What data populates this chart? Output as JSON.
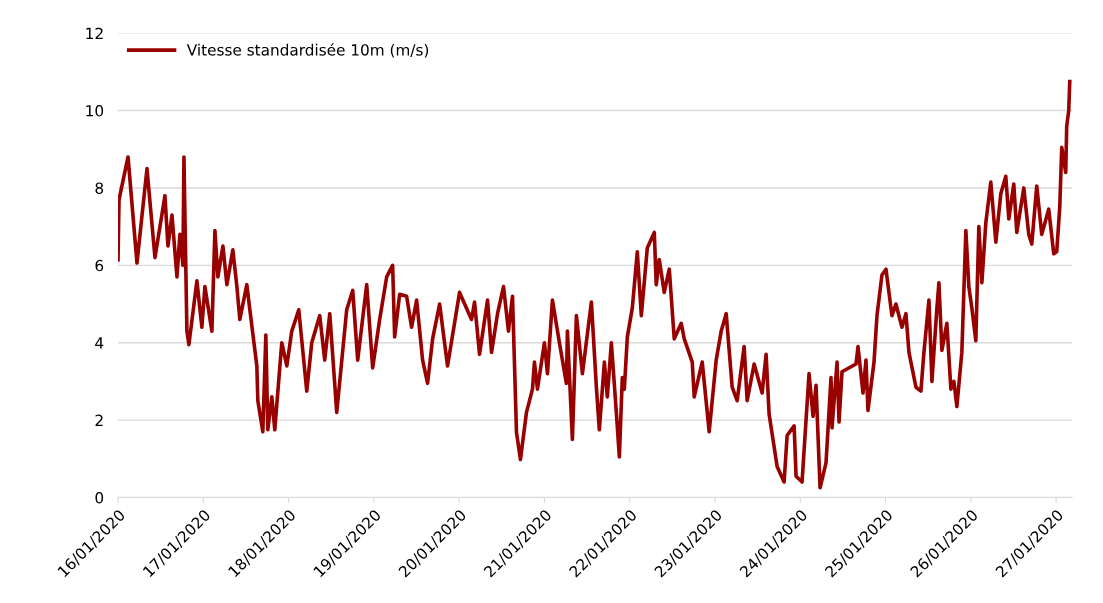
{
  "chart_data": {
    "type": "line",
    "legend": "top left",
    "grid": "y",
    "line_style": "solid",
    "ylim": [
      0,
      12
    ],
    "yticks": [
      0,
      2,
      4,
      6,
      8,
      10,
      12
    ],
    "xlim": [
      "2020-01-16T00:00",
      "2020-01-27T04:30"
    ],
    "xticks": [
      {
        "value": "2020-01-16",
        "label": "16/01/2020"
      },
      {
        "value": "2020-01-17",
        "label": "17/01/2020"
      },
      {
        "value": "2020-01-18",
        "label": "18/01/2020"
      },
      {
        "value": "2020-01-19",
        "label": "19/01/2020"
      },
      {
        "value": "2020-01-20",
        "label": "20/01/2020"
      },
      {
        "value": "2020-01-21",
        "label": "21/01/2020"
      },
      {
        "value": "2020-01-22",
        "label": "22/01/2020"
      },
      {
        "value": "2020-01-23",
        "label": "23/01/2020"
      },
      {
        "value": "2020-01-24",
        "label": "24/01/2020"
      },
      {
        "value": "2020-01-25",
        "label": "25/01/2020"
      },
      {
        "value": "2020-01-26",
        "label": "26/01/2020"
      },
      {
        "value": "2020-01-27",
        "label": "27/01/2020"
      }
    ],
    "x": [
      "2020-01-16T00:00",
      "2020-01-16T00:17",
      "2020-01-16T02:49",
      "2020-01-16T05:20",
      "2020-01-16T08:09",
      "2020-01-16T10:24",
      "2020-01-16T13:12",
      "2020-01-16T14:03",
      "2020-01-16T15:11",
      "2020-01-16T16:35",
      "2020-01-16T17:25",
      "2020-01-16T18:16",
      "2020-01-16T18:33",
      "2020-01-16T19:23",
      "2020-01-16T19:57",
      "2020-01-16T22:12",
      "2020-01-16T23:36",
      "2020-01-17T00:27",
      "2020-01-17T02:25",
      "2020-01-17T03:16",
      "2020-01-17T04:06",
      "2020-01-17T05:31",
      "2020-01-17T06:38",
      "2020-01-17T08:19",
      "2020-01-17T09:27",
      "2020-01-17T10:17",
      "2020-01-17T12:15",
      "2020-01-17T13:06",
      "2020-01-17T15:04",
      "2020-01-17T15:21",
      "2020-01-17T16:45",
      "2020-01-17T17:36",
      "2020-01-17T18:09",
      "2020-01-17T19:17",
      "2020-01-17T20:07",
      "2020-01-17T22:05",
      "2020-01-17T23:30",
      "2020-01-18T00:54",
      "2020-01-18T02:52",
      "2020-01-18T05:07",
      "2020-01-18T06:31",
      "2020-01-18T08:46",
      "2020-01-18T10:10",
      "2020-01-18T11:35",
      "2020-01-18T13:33",
      "2020-01-18T16:21",
      "2020-01-18T18:03",
      "2020-01-18T19:27",
      "2020-01-18T21:59",
      "2020-01-18T23:40",
      "2020-01-19T01:38",
      "2020-01-19T03:36",
      "2020-01-19T05:17",
      "2020-01-19T05:51",
      "2020-01-19T07:15",
      "2020-01-19T09:13",
      "2020-01-19T10:37",
      "2020-01-19T12:02",
      "2020-01-19T13:43",
      "2020-01-19T15:07",
      "2020-01-19T16:32",
      "2020-01-19T18:30",
      "2020-01-19T20:44",
      "2020-01-20T00:07",
      "2020-01-20T03:29",
      "2020-01-20T04:20",
      "2020-01-20T05:44",
      "2020-01-20T07:59",
      "2020-01-20T09:07",
      "2020-01-20T10:48",
      "2020-01-20T12:29",
      "2020-01-20T13:53",
      "2020-01-20T15:01",
      "2020-01-20T16:08",
      "2020-01-20T17:15",
      "2020-01-20T18:57",
      "2020-01-20T20:38",
      "2020-01-20T21:11",
      "2020-01-20T22:02",
      "2020-01-21T00:00",
      "2020-01-21T00:51",
      "2020-01-21T02:15",
      "2020-01-21T04:13",
      "2020-01-21T06:11",
      "2020-01-21T06:28",
      "2020-01-21T07:52",
      "2020-01-21T09:00",
      "2020-01-21T10:41",
      "2020-01-21T13:13",
      "2020-01-21T14:37",
      "2020-01-21T15:27",
      "2020-01-21T16:52",
      "2020-01-21T17:42",
      "2020-01-21T18:50",
      "2020-01-21T20:14",
      "2020-01-21T21:05",
      "2020-01-21T21:55",
      "2020-01-21T22:29",
      "2020-01-21T23:20",
      "2020-01-22T00:44",
      "2020-01-22T02:08",
      "2020-01-22T03:16",
      "2020-01-22T04:57",
      "2020-01-22T06:55",
      "2020-01-22T07:28",
      "2020-01-22T08:19",
      "2020-01-22T09:43",
      "2020-01-22T11:08",
      "2020-01-22T12:32",
      "2020-01-22T14:30",
      "2020-01-22T15:21",
      "2020-01-22T17:36",
      "2020-01-22T18:09",
      "2020-01-22T20:24",
      "2020-01-22T22:22",
      "2020-01-23T00:20",
      "2020-01-23T01:45",
      "2020-01-23T03:09",
      "2020-01-23T04:50",
      "2020-01-23T06:14",
      "2020-01-23T08:12",
      "2020-01-23T09:03",
      "2020-01-23T11:01",
      "2020-01-23T13:16",
      "2020-01-23T14:23",
      "2020-01-23T15:14",
      "2020-01-23T17:29",
      "2020-01-23T19:27",
      "2020-01-23T20:18",
      "2020-01-23T22:16",
      "2020-01-23T22:49",
      "2020-01-24T00:30",
      "2020-01-24T02:28",
      "2020-01-24T03:36",
      "2020-01-24T04:26",
      "2020-01-24T05:34",
      "2020-01-24T07:15",
      "2020-01-24T08:39",
      "2020-01-24T08:56",
      "2020-01-24T10:21",
      "2020-01-24T10:54",
      "2020-01-24T11:45",
      "2020-01-24T15:41",
      "2020-01-24T16:15",
      "2020-01-24T17:39",
      "2020-01-24T18:29",
      "2020-01-24T19:03",
      "2020-01-24T20:45",
      "2020-01-24T21:35",
      "2020-01-24T22:59",
      "2020-01-25T00:07",
      "2020-01-25T01:48",
      "2020-01-25T02:55",
      "2020-01-25T04:37",
      "2020-01-25T05:44",
      "2020-01-25T06:35",
      "2020-01-25T08:33",
      "2020-01-25T09:57",
      "2020-01-25T10:48",
      "2020-01-25T12:12",
      "2020-01-25T13:03",
      "2020-01-25T14:27",
      "2020-01-25T15:01",
      "2020-01-25T15:51",
      "2020-01-25T17:15",
      "2020-01-25T18:23",
      "2020-01-25T19:14",
      "2020-01-25T20:04",
      "2020-01-25T21:28",
      "2020-01-25T22:36",
      "2020-01-25T23:26",
      "2020-01-26T00:17",
      "2020-01-26T01:24",
      "2020-01-26T02:15",
      "2020-01-26T03:06",
      "2020-01-26T04:13",
      "2020-01-26T05:37",
      "2020-01-26T07:02",
      "2020-01-26T08:26",
      "2020-01-26T09:50",
      "2020-01-26T10:41",
      "2020-01-26T12:05",
      "2020-01-26T12:56",
      "2020-01-26T14:54",
      "2020-01-26T16:18",
      "2020-01-26T17:09",
      "2020-01-26T18:33",
      "2020-01-26T19:57",
      "2020-01-26T21:55",
      "2020-01-26T23:20",
      "2020-01-27T00:10",
      "2020-01-27T01:01",
      "2020-01-27T01:35",
      "2020-01-27T02:42",
      "2020-01-27T02:59",
      "2020-01-27T03:33",
      "2020-01-27T03:50"
    ],
    "series": [
      {
        "name": "Vitesse standardisée 10m (m/s)",
        "color": "#990000",
        "values": [
          6.14,
          7.7,
          8.8,
          6.06,
          8.5,
          6.2,
          7.8,
          6.5,
          7.3,
          5.7,
          6.8,
          6.0,
          8.8,
          4.3,
          3.95,
          5.6,
          4.4,
          5.45,
          4.3,
          6.9,
          5.7,
          6.5,
          5.5,
          6.4,
          5.45,
          4.6,
          5.5,
          4.85,
          3.4,
          2.5,
          1.7,
          4.2,
          1.75,
          2.6,
          1.75,
          4.0,
          3.4,
          4.3,
          4.85,
          2.75,
          4.0,
          4.7,
          3.55,
          4.75,
          2.2,
          4.85,
          5.35,
          3.55,
          5.5,
          3.35,
          4.6,
          5.7,
          6.0,
          4.15,
          5.25,
          5.2,
          4.4,
          5.1,
          3.55,
          2.95,
          4.1,
          5.0,
          3.4,
          5.3,
          4.6,
          5.05,
          3.7,
          5.1,
          3.75,
          4.75,
          5.45,
          4.3,
          5.2,
          1.68,
          0.98,
          2.2,
          2.8,
          3.5,
          2.8,
          4.0,
          3.2,
          5.1,
          4.0,
          2.95,
          4.3,
          1.5,
          4.7,
          3.2,
          5.05,
          2.85,
          1.75,
          3.5,
          2.6,
          4.0,
          2.2,
          1.05,
          3.1,
          2.8,
          4.15,
          4.9,
          6.35,
          4.7,
          6.45,
          6.85,
          5.5,
          6.15,
          5.3,
          5.9,
          4.1,
          4.5,
          4.1,
          3.5,
          2.6,
          3.5,
          1.7,
          3.55,
          4.3,
          4.75,
          2.85,
          2.5,
          3.9,
          2.5,
          3.45,
          2.7,
          3.7,
          2.15,
          0.8,
          0.4,
          1.6,
          1.85,
          0.55,
          0.4,
          3.2,
          2.1,
          2.9,
          0.25,
          0.9,
          3.1,
          1.8,
          3.5,
          1.95,
          3.25,
          3.45,
          3.9,
          2.7,
          3.55,
          2.25,
          3.5,
          4.7,
          5.75,
          5.9,
          4.7,
          5.0,
          4.4,
          4.75,
          3.75,
          2.85,
          2.75,
          3.75,
          5.1,
          3.0,
          4.9,
          5.55,
          3.8,
          4.5,
          2.8,
          3.0,
          2.35,
          3.75,
          6.9,
          5.45,
          4.9,
          4.05,
          7.0,
          5.55,
          7.1,
          8.15,
          6.6,
          7.85,
          8.3,
          7.2,
          8.1,
          6.85,
          8.0,
          6.8,
          6.55,
          8.05,
          6.8,
          7.45,
          6.3,
          6.35,
          7.5,
          9.05,
          8.4,
          9.6,
          10.0,
          10.75
        ]
      }
    ]
  }
}
